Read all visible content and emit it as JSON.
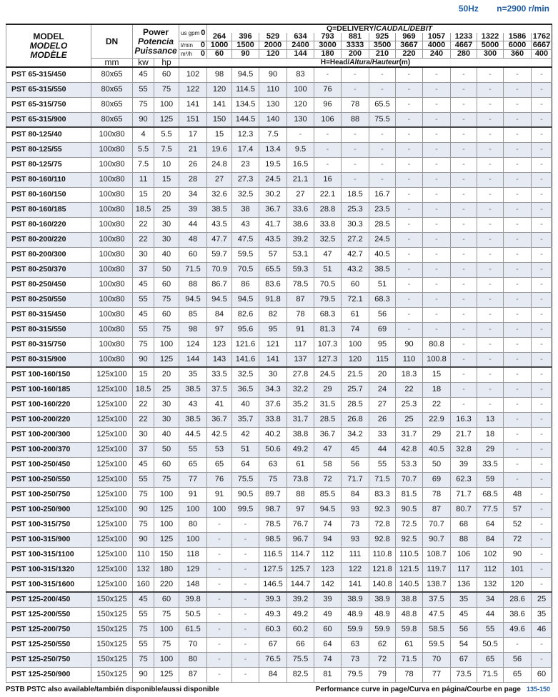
{
  "header": {
    "freq": "50Hz",
    "speed": "n=2900 r/min"
  },
  "table": {
    "model_label": [
      "MODEL",
      "MODELO",
      "MODÈLE"
    ],
    "dn_label": "DN",
    "dn_unit": "mm",
    "power_label": [
      "Power",
      "Potencia",
      "Puissance"
    ],
    "kw_label": "kw",
    "hp_label": "hp",
    "q_title": "Q=DELIVERY/CAUDAL/DÉBIT",
    "gpm_unit": "us gpm",
    "lmin_unit": "l/min",
    "m3h_unit": "m³/h",
    "zero": "0",
    "gpm": [
      "264",
      "396",
      "529",
      "634",
      "793",
      "881",
      "925",
      "969",
      "1057",
      "1233",
      "1322",
      "1586",
      "1762"
    ],
    "lmin": [
      "1000",
      "1500",
      "2000",
      "2400",
      "3000",
      "3333",
      "3500",
      "3667",
      "4000",
      "4667",
      "5000",
      "6000",
      "6667"
    ],
    "m3h": [
      "60",
      "90",
      "120",
      "144",
      "180",
      "200",
      "210",
      "220",
      "240",
      "280",
      "300",
      "360",
      "400"
    ],
    "head_label": "H=Head/Altura/Hauteur(m)",
    "rows": [
      [
        "PST 65-315/450",
        "80x65",
        "45",
        "60",
        "102",
        "98",
        "94.5",
        "90",
        "83",
        "-",
        "-",
        "-",
        "-",
        "-",
        "-",
        "-",
        "-",
        "-"
      ],
      [
        "PST 65-315/550",
        "80x65",
        "55",
        "75",
        "122",
        "120",
        "114.5",
        "110",
        "100",
        "76",
        "-",
        "-",
        "-",
        "-",
        "-",
        "-",
        "-",
        "-"
      ],
      [
        "PST 65-315/750",
        "80x65",
        "75",
        "100",
        "141",
        "141",
        "134.5",
        "130",
        "120",
        "96",
        "78",
        "65.5",
        "-",
        "-",
        "-",
        "-",
        "-",
        "-"
      ],
      [
        "PST 65-315/900",
        "80x65",
        "90",
        "125",
        "151",
        "150",
        "144.5",
        "140",
        "130",
        "106",
        "88",
        "75.5",
        "-",
        "-",
        "-",
        "-",
        "-",
        "-"
      ],
      [
        "PST 80-125/40",
        "100x80",
        "4",
        "5.5",
        "17",
        "15",
        "12.3",
        "7.5",
        "-",
        "-",
        "-",
        "-",
        "-",
        "-",
        "-",
        "-",
        "-",
        "-"
      ],
      [
        "PST 80-125/55",
        "100x80",
        "5.5",
        "7.5",
        "21",
        "19.6",
        "17.4",
        "13.4",
        "9.5",
        "-",
        "-",
        "-",
        "-",
        "-",
        "-",
        "-",
        "-",
        "-"
      ],
      [
        "PST 80-125/75",
        "100x80",
        "7.5",
        "10",
        "26",
        "24.8",
        "23",
        "19.5",
        "16.5",
        "-",
        "-",
        "-",
        "-",
        "-",
        "-",
        "-",
        "-",
        "-"
      ],
      [
        "PST 80-160/110",
        "100x80",
        "11",
        "15",
        "28",
        "27",
        "27.3",
        "24.5",
        "21.1",
        "16",
        "-",
        "-",
        "-",
        "-",
        "-",
        "-",
        "-",
        "-"
      ],
      [
        "PST 80-160/150",
        "100x80",
        "15",
        "20",
        "34",
        "32.6",
        "32.5",
        "30.2",
        "27",
        "22.1",
        "18.5",
        "16.7",
        "-",
        "-",
        "-",
        "-",
        "-",
        "-"
      ],
      [
        "PST 80-160/185",
        "100x80",
        "18.5",
        "25",
        "39",
        "38.5",
        "38",
        "36.7",
        "33.6",
        "28.8",
        "25.3",
        "23.5",
        "-",
        "-",
        "-",
        "-",
        "-",
        "-"
      ],
      [
        "PST 80-160/220",
        "100x80",
        "22",
        "30",
        "44",
        "43.5",
        "43",
        "41.7",
        "38.6",
        "33.8",
        "30.3",
        "28.5",
        "-",
        "-",
        "-",
        "-",
        "-",
        "-"
      ],
      [
        "PST 80-200/220",
        "100x80",
        "22",
        "30",
        "48",
        "47.7",
        "47.5",
        "43.5",
        "39.2",
        "32.5",
        "27.2",
        "24.5",
        "-",
        "-",
        "-",
        "-",
        "-",
        "-"
      ],
      [
        "PST 80-200/300",
        "100x80",
        "30",
        "40",
        "60",
        "59.7",
        "59.5",
        "57",
        "53.1",
        "47",
        "42.7",
        "40.5",
        "-",
        "-",
        "-",
        "-",
        "-",
        "-"
      ],
      [
        "PST 80-250/370",
        "100x80",
        "37",
        "50",
        "71.5",
        "70.9",
        "70.5",
        "65.5",
        "59.3",
        "51",
        "43.2",
        "38.5",
        "-",
        "-",
        "-",
        "-",
        "-",
        "-"
      ],
      [
        "PST 80-250/450",
        "100x80",
        "45",
        "60",
        "88",
        "86.7",
        "86",
        "83.6",
        "78.5",
        "70.5",
        "60",
        "51",
        "-",
        "-",
        "-",
        "-",
        "-",
        "-"
      ],
      [
        "PST 80-250/550",
        "100x80",
        "55",
        "75",
        "94.5",
        "94.5",
        "94.5",
        "91.8",
        "87",
        "79.5",
        "72.1",
        "68.3",
        "-",
        "-",
        "-",
        "-",
        "-",
        "-"
      ],
      [
        "PST 80-315/450",
        "100x80",
        "45",
        "60",
        "85",
        "84",
        "82.6",
        "82",
        "78",
        "68.3",
        "61",
        "56",
        "-",
        "-",
        "-",
        "-",
        "-",
        "-"
      ],
      [
        "PST 80-315/550",
        "100x80",
        "55",
        "75",
        "98",
        "97",
        "95.6",
        "95",
        "91",
        "81.3",
        "74",
        "69",
        "-",
        "-",
        "-",
        "-",
        "-",
        "-"
      ],
      [
        "PST 80-315/750",
        "100x80",
        "75",
        "100",
        "124",
        "123",
        "121.6",
        "121",
        "117",
        "107.3",
        "100",
        "95",
        "90",
        "80.8",
        "-",
        "-",
        "-",
        "-"
      ],
      [
        "PST 80-315/900",
        "100x80",
        "90",
        "125",
        "144",
        "143",
        "141.6",
        "141",
        "137",
        "127.3",
        "120",
        "115",
        "110",
        "100.8",
        "-",
        "-",
        "-",
        "-"
      ],
      [
        "PST 100-160/150",
        "125x100",
        "15",
        "20",
        "35",
        "33.5",
        "32.5",
        "30",
        "27.8",
        "24.5",
        "21.5",
        "20",
        "18.3",
        "15",
        "-",
        "-",
        "-",
        "-"
      ],
      [
        "PST 100-160/185",
        "125x100",
        "18.5",
        "25",
        "38.5",
        "37.5",
        "36.5",
        "34.3",
        "32.2",
        "29",
        "25.7",
        "24",
        "22",
        "18",
        "-",
        "-",
        "-",
        "-"
      ],
      [
        "PST 100-160/220",
        "125x100",
        "22",
        "30",
        "43",
        "41",
        "40",
        "37.6",
        "35.2",
        "31.5",
        "28.5",
        "27",
        "25.3",
        "22",
        "-",
        "-",
        "-",
        "-"
      ],
      [
        "PST 100-200/220",
        "125x100",
        "22",
        "30",
        "38.5",
        "36.7",
        "35.7",
        "33.8",
        "31.7",
        "28.5",
        "26.8",
        "26",
        "25",
        "22.9",
        "16.3",
        "13",
        "-",
        "-"
      ],
      [
        "PST 100-200/300",
        "125x100",
        "30",
        "40",
        "44.5",
        "42.5",
        "42",
        "40.2",
        "38.8",
        "36.7",
        "34.2",
        "33",
        "31.7",
        "29",
        "21.7",
        "18",
        "-",
        "-"
      ],
      [
        "PST 100-200/370",
        "125x100",
        "37",
        "50",
        "55",
        "53",
        "51",
        "50.6",
        "49.2",
        "47",
        "45",
        "44",
        "42.8",
        "40.5",
        "32.8",
        "29",
        "-",
        "-"
      ],
      [
        "PST 100-250/450",
        "125x100",
        "45",
        "60",
        "65",
        "65",
        "64",
        "63",
        "61",
        "58",
        "56",
        "55",
        "53.3",
        "50",
        "39",
        "33.5",
        "-",
        "-"
      ],
      [
        "PST 100-250/550",
        "125x100",
        "55",
        "75",
        "77",
        "76",
        "75.5",
        "75",
        "73.8",
        "72",
        "71.7",
        "71.5",
        "70.7",
        "69",
        "62.3",
        "59",
        "-",
        "-"
      ],
      [
        "PST 100-250/750",
        "125x100",
        "75",
        "100",
        "91",
        "91",
        "90.5",
        "89.7",
        "88",
        "85.5",
        "84",
        "83.3",
        "81.5",
        "78",
        "71.7",
        "68.5",
        "48",
        "-"
      ],
      [
        "PST 100-250/900",
        "125x100",
        "90",
        "125",
        "100",
        "100",
        "99.5",
        "98.7",
        "97",
        "94.5",
        "93",
        "92.3",
        "90.5",
        "87",
        "80.7",
        "77.5",
        "57",
        "-"
      ],
      [
        "PST 100-315/750",
        "125x100",
        "75",
        "100",
        "80",
        "-",
        "-",
        "78.5",
        "76.7",
        "74",
        "73",
        "72.8",
        "72.5",
        "70.7",
        "68",
        "64",
        "52",
        "-"
      ],
      [
        "PST 100-315/900",
        "125x100",
        "90",
        "125",
        "100",
        "-",
        "-",
        "98.5",
        "96.7",
        "94",
        "93",
        "92.8",
        "92.5",
        "90.7",
        "88",
        "84",
        "72",
        "-"
      ],
      [
        "PST 100-315/1100",
        "125x100",
        "110",
        "150",
        "118",
        "-",
        "-",
        "116.5",
        "114.7",
        "112",
        "111",
        "110.8",
        "110.5",
        "108.7",
        "106",
        "102",
        "90",
        "-"
      ],
      [
        "PST 100-315/1320",
        "125x100",
        "132",
        "180",
        "129",
        "-",
        "-",
        "127.5",
        "125.7",
        "123",
        "122",
        "121.8",
        "121.5",
        "119.7",
        "117",
        "112",
        "101",
        "-"
      ],
      [
        "PST 100-315/1600",
        "125x100",
        "160",
        "220",
        "148",
        "-",
        "-",
        "146.5",
        "144.7",
        "142",
        "141",
        "140.8",
        "140.5",
        "138.7",
        "136",
        "132",
        "120",
        "-"
      ],
      [
        "PST 125-200/450",
        "150x125",
        "45",
        "60",
        "39.8",
        "-",
        "-",
        "39.3",
        "39.2",
        "39",
        "38.9",
        "38.9",
        "38.8",
        "37.5",
        "35",
        "34",
        "28.6",
        "25"
      ],
      [
        "PST 125-200/550",
        "150x125",
        "55",
        "75",
        "50.5",
        "-",
        "-",
        "49.3",
        "49.2",
        "49",
        "48.9",
        "48.9",
        "48.8",
        "47.5",
        "45",
        "44",
        "38.6",
        "35"
      ],
      [
        "PST 125-200/750",
        "150x125",
        "75",
        "100",
        "61.5",
        "-",
        "-",
        "60.3",
        "60.2",
        "60",
        "59.9",
        "59.9",
        "59.8",
        "58.5",
        "56",
        "55",
        "49.6",
        "46"
      ],
      [
        "PST 125-250/550",
        "150x125",
        "55",
        "75",
        "70",
        "-",
        "-",
        "67",
        "66",
        "64",
        "63",
        "62",
        "61",
        "59.5",
        "54",
        "50.5",
        "-",
        "-"
      ],
      [
        "PST 125-250/750",
        "150x125",
        "75",
        "100",
        "80",
        "-",
        "-",
        "76.5",
        "75.5",
        "74",
        "73",
        "72",
        "71.5",
        "70",
        "67",
        "65",
        "56",
        "-"
      ],
      [
        "PST 125-250/900",
        "150x125",
        "90",
        "125",
        "87",
        "-",
        "-",
        "84",
        "82.5",
        "81",
        "79.5",
        "79",
        "78",
        "77",
        "73.5",
        "71.5",
        "65",
        "60"
      ]
    ]
  },
  "footer": {
    "left": "PSTB PSTC also available/también disponible/aussi disponible",
    "right": "Performance curve in page/Curva en página/Courbe en page",
    "pages": "135-150"
  }
}
